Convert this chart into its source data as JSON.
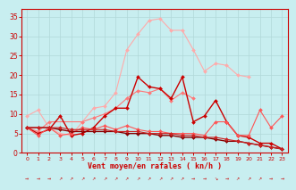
{
  "title": "",
  "xlabel": "Vent moyen/en rafales ( kn/h )",
  "ylabel": "",
  "xlim": [
    -0.5,
    23.5
  ],
  "ylim": [
    0,
    37
  ],
  "yticks": [
    0,
    5,
    10,
    15,
    20,
    25,
    30,
    35
  ],
  "xticks": [
    0,
    1,
    2,
    3,
    4,
    5,
    6,
    7,
    8,
    9,
    10,
    11,
    12,
    13,
    14,
    15,
    16,
    17,
    18,
    19,
    20,
    21,
    22,
    23
  ],
  "bg_color": "#c8eef0",
  "grid_color": "#b0d8d8",
  "series": [
    {
      "color": "#ffaaaa",
      "lw": 0.8,
      "marker": "D",
      "ms": 2.0,
      "y": [
        9.5,
        11.0,
        6.5,
        5.0,
        4.5,
        8.0,
        11.5,
        12.0,
        15.5,
        26.5,
        30.5,
        34.0,
        34.5,
        31.5,
        31.5,
        26.5,
        21.0,
        23.0,
        22.5,
        20.0,
        19.5,
        null,
        null,
        null
      ]
    },
    {
      "color": "#ff7777",
      "lw": 0.8,
      "marker": "D",
      "ms": 2.0,
      "y": [
        6.5,
        5.5,
        8.0,
        null,
        null,
        8.0,
        9.0,
        10.0,
        11.5,
        14.0,
        16.0,
        15.5,
        16.5,
        13.5,
        15.5,
        14.0,
        null,
        null,
        null,
        null,
        null,
        null,
        null,
        null
      ]
    },
    {
      "color": "#cc0000",
      "lw": 1.0,
      "marker": "D",
      "ms": 2.0,
      "y": [
        6.5,
        5.0,
        6.0,
        9.5,
        4.5,
        5.0,
        6.5,
        9.5,
        11.5,
        11.5,
        19.5,
        17.0,
        16.5,
        14.0,
        19.5,
        8.0,
        9.5,
        13.5,
        8.0,
        4.5,
        4.0,
        2.5,
        2.5,
        1.0
      ]
    },
    {
      "color": "#ff5555",
      "lw": 0.8,
      "marker": "D",
      "ms": 2.0,
      "y": [
        6.5,
        4.5,
        6.5,
        4.5,
        5.0,
        6.5,
        6.0,
        7.0,
        6.0,
        7.0,
        6.0,
        5.5,
        5.5,
        5.0,
        5.0,
        5.0,
        4.5,
        8.0,
        8.0,
        4.5,
        4.5,
        11.0,
        6.5,
        9.5
      ]
    },
    {
      "color": "#880000",
      "lw": 1.0,
      "marker": "D",
      "ms": 2.0,
      "y": [
        6.5,
        6.5,
        6.5,
        6.0,
        5.5,
        5.5,
        5.5,
        5.5,
        5.5,
        5.0,
        5.0,
        5.0,
        4.5,
        4.5,
        4.0,
        4.0,
        4.0,
        3.5,
        3.0,
        3.0,
        2.5,
        2.0,
        1.5,
        1.0
      ]
    },
    {
      "color": "#cc2222",
      "lw": 0.8,
      "marker": "D",
      "ms": 2.0,
      "y": [
        6.5,
        6.5,
        6.5,
        6.5,
        6.0,
        6.0,
        6.0,
        6.0,
        5.5,
        5.5,
        5.5,
        5.0,
        5.0,
        5.0,
        4.5,
        4.5,
        4.0,
        4.0,
        3.5,
        3.0,
        2.5,
        2.0,
        1.5,
        1.0
      ]
    }
  ]
}
